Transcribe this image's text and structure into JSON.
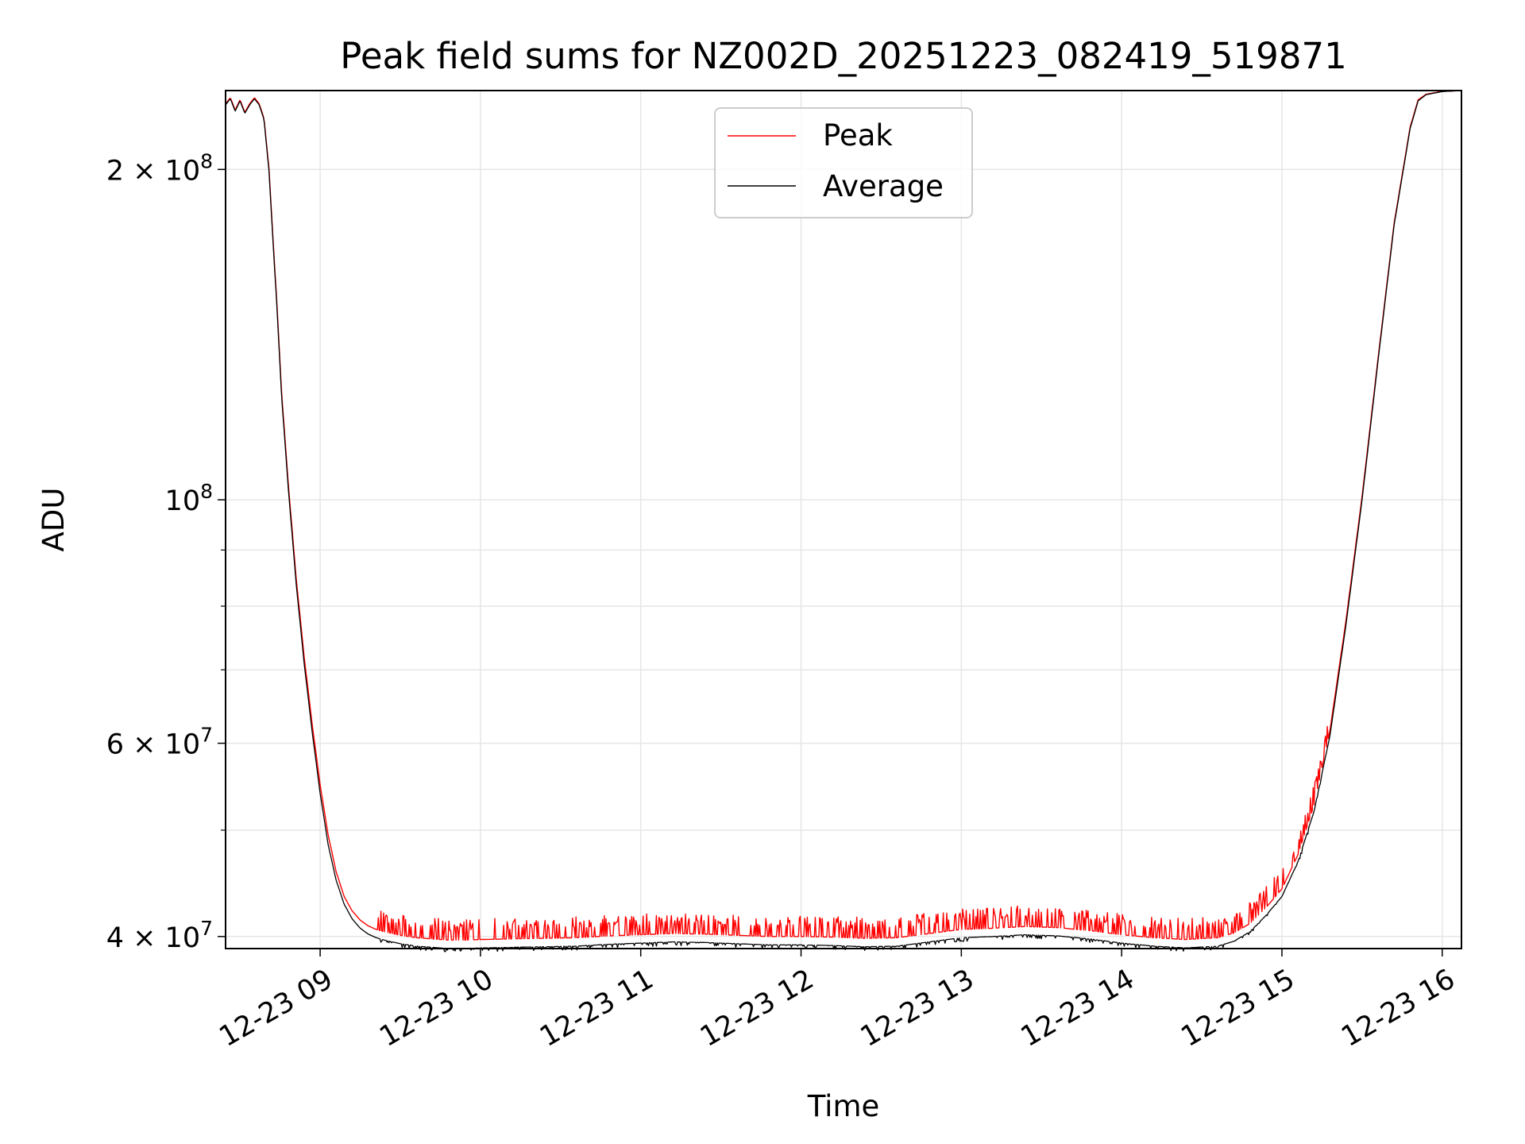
{
  "chart_data": {
    "type": "line",
    "title": "Peak field sums for NZ002D_20251223_082419_519871",
    "xlabel": "Time",
    "ylabel": "ADU",
    "yscale": "log",
    "ylim": [
      39000000,
      236000000
    ],
    "xlim_hours": [
      8.41,
      16.12
    ],
    "grid": true,
    "legend_position": "top-center",
    "colors": {
      "peak": "#ff0000",
      "average": "#000000",
      "grid": "#e6e6e6",
      "axes": "#000000"
    },
    "x_ticks": [
      {
        "hour": 9,
        "label": "12-23 09"
      },
      {
        "hour": 10,
        "label": "12-23 10"
      },
      {
        "hour": 11,
        "label": "12-23 11"
      },
      {
        "hour": 12,
        "label": "12-23 12"
      },
      {
        "hour": 13,
        "label": "12-23 13"
      },
      {
        "hour": 14,
        "label": "12-23 14"
      },
      {
        "hour": 15,
        "label": "12-23 15"
      },
      {
        "hour": 16,
        "label": "12-23 16"
      }
    ],
    "y_major_ticks": [
      {
        "value": 40000000,
        "mantissa": "4",
        "exponent": "7"
      },
      {
        "value": 60000000,
        "mantissa": "6",
        "exponent": "7"
      },
      {
        "value": 100000000,
        "mantissa": "",
        "exponent": "8"
      },
      {
        "value": 200000000,
        "mantissa": "2",
        "exponent": "8"
      }
    ],
    "y_minor_ticks": [
      50000000,
      70000000,
      80000000,
      90000000
    ],
    "tick_base": "10",
    "times_sign": "×",
    "series": [
      {
        "name": "Average",
        "color": "#000000",
        "x_hours": [
          8.41,
          8.44,
          8.47,
          8.5,
          8.53,
          8.56,
          8.59,
          8.62,
          8.65,
          8.68,
          8.7,
          8.73,
          8.76,
          8.8,
          8.85,
          8.9,
          8.95,
          9.0,
          9.05,
          9.1,
          9.15,
          9.2,
          9.25,
          9.3,
          9.35,
          9.4,
          9.5,
          9.6,
          9.7,
          9.8,
          9.9,
          10.0,
          10.2,
          10.4,
          10.6,
          10.8,
          11.0,
          11.2,
          11.4,
          11.6,
          11.8,
          12.0,
          12.2,
          12.4,
          12.6,
          12.8,
          13.0,
          13.2,
          13.4,
          13.6,
          13.8,
          14.0,
          14.2,
          14.4,
          14.6,
          14.7,
          14.8,
          14.9,
          15.0,
          15.1,
          15.2,
          15.3,
          15.4,
          15.5,
          15.6,
          15.7,
          15.8,
          15.85,
          15.9,
          16.0,
          16.12
        ],
        "values": [
          229000000,
          232000000,
          226000000,
          231000000,
          225000000,
          229000000,
          232000000,
          229000000,
          222000000,
          200000000,
          178000000,
          150000000,
          124000000,
          103000000,
          84000000,
          71000000,
          61500000,
          54000000,
          48500000,
          45000000,
          42800000,
          41500000,
          40700000,
          40200000,
          39900000,
          39700000,
          39400000,
          39200000,
          39100000,
          39000000,
          39000000,
          39050000,
          39100000,
          39150000,
          39200000,
          39350000,
          39450000,
          39550000,
          39500000,
          39400000,
          39300000,
          39300000,
          39250000,
          39150000,
          39200000,
          39550000,
          39900000,
          40000000,
          40150000,
          40050000,
          39800000,
          39450000,
          39200000,
          39050000,
          39200000,
          39600000,
          40400000,
          41800000,
          43500000,
          46800000,
          52000000,
          61000000,
          77000000,
          100000000,
          134000000,
          178000000,
          218000000,
          231000000,
          234000000,
          235500000,
          236000000
        ]
      },
      {
        "name": "Peak",
        "color": "#ff0000",
        "x_hours": [
          8.41,
          8.44,
          8.47,
          8.5,
          8.53,
          8.56,
          8.59,
          8.62,
          8.65,
          8.68,
          8.7,
          8.73,
          8.76,
          8.8,
          8.85,
          8.9,
          8.95,
          9.0,
          9.05,
          9.1,
          9.15,
          9.2,
          9.25,
          9.3,
          9.35,
          9.4,
          9.5,
          9.6,
          9.7,
          9.8,
          9.9,
          10.0,
          10.2,
          10.4,
          10.6,
          10.8,
          11.0,
          11.2,
          11.4,
          11.6,
          11.8,
          12.0,
          12.2,
          12.4,
          12.6,
          12.8,
          13.0,
          13.2,
          13.4,
          13.6,
          13.8,
          14.0,
          14.2,
          14.4,
          14.6,
          14.7,
          14.8,
          14.9,
          15.0,
          15.1,
          15.2,
          15.3,
          15.4,
          15.5,
          15.6,
          15.7,
          15.8,
          15.85,
          15.9,
          16.0,
          16.12
        ],
        "values": [
          229500000,
          232500000,
          226500000,
          231500000,
          225500000,
          229500000,
          232500000,
          229500000,
          222500000,
          201000000,
          179000000,
          151000000,
          125000000,
          104000000,
          85000000,
          72000000,
          62500000,
          55000000,
          49500000,
          45800000,
          43500000,
          42200000,
          41400000,
          40900000,
          40600000,
          40400000,
          40100000,
          39900000,
          39800000,
          39700000,
          39700000,
          39750000,
          39800000,
          39850000,
          39900000,
          40050000,
          40150000,
          40250000,
          40200000,
          40100000,
          40000000,
          40000000,
          39950000,
          39850000,
          39900000,
          40250000,
          40600000,
          40700000,
          40850000,
          40750000,
          40500000,
          40150000,
          39900000,
          39750000,
          39900000,
          40300000,
          41100000,
          42500000,
          44200000,
          47500000,
          52700000,
          61700000,
          77700000,
          100700000,
          134700000,
          178700000,
          218700000,
          231500000,
          234200000,
          235600000,
          236000000
        ]
      }
    ]
  }
}
